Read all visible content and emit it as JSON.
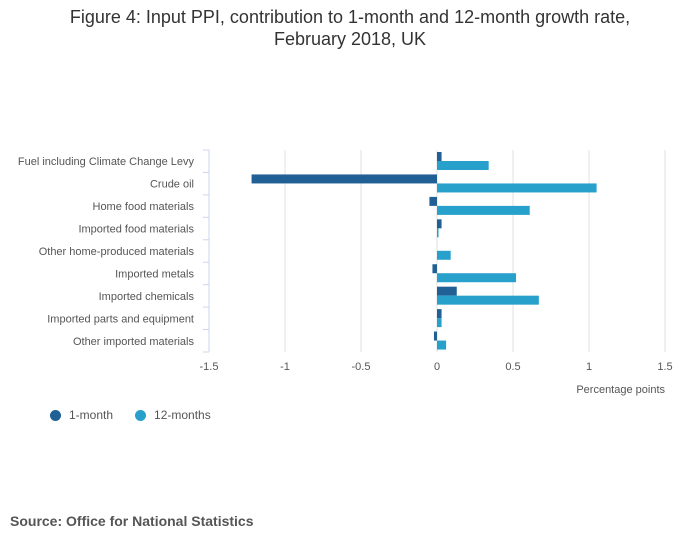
{
  "chart_data": {
    "type": "bar",
    "orientation": "horizontal",
    "title": [
      "Figure 4: Input PPI, contribution to 1-month and 12-month growth rate,",
      "February 2018, UK"
    ],
    "categories": [
      "Fuel including Climate Change Levy",
      "Crude oil",
      "Home food materials",
      "Imported food materials",
      "Other home-produced materials",
      "Imported metals",
      "Imported chemicals",
      "Imported parts and equipment",
      "Other imported materials"
    ],
    "series": [
      {
        "name": "1-month",
        "color": "#206095",
        "values": [
          0.03,
          -1.22,
          -0.05,
          0.03,
          0,
          -0.03,
          0.13,
          0.03,
          -0.02
        ]
      },
      {
        "name": "12-months",
        "color": "#27a0cc",
        "values": [
          0.34,
          1.05,
          0.61,
          0.01,
          0.09,
          0.52,
          0.67,
          0.03,
          0.06
        ]
      }
    ],
    "xlabel": "Percentage points",
    "xlim": [
      -1.5,
      1.5
    ],
    "xticks": [
      -1.5,
      -1,
      -0.5,
      0,
      0.5,
      1,
      1.5
    ],
    "xtick_labels": [
      "-1.5",
      "-1",
      "-0.5",
      "0",
      "0.5",
      "1",
      "1.5"
    ],
    "grid": true,
    "legend": "bottom-left"
  },
  "source": "Source: Office for National Statistics"
}
